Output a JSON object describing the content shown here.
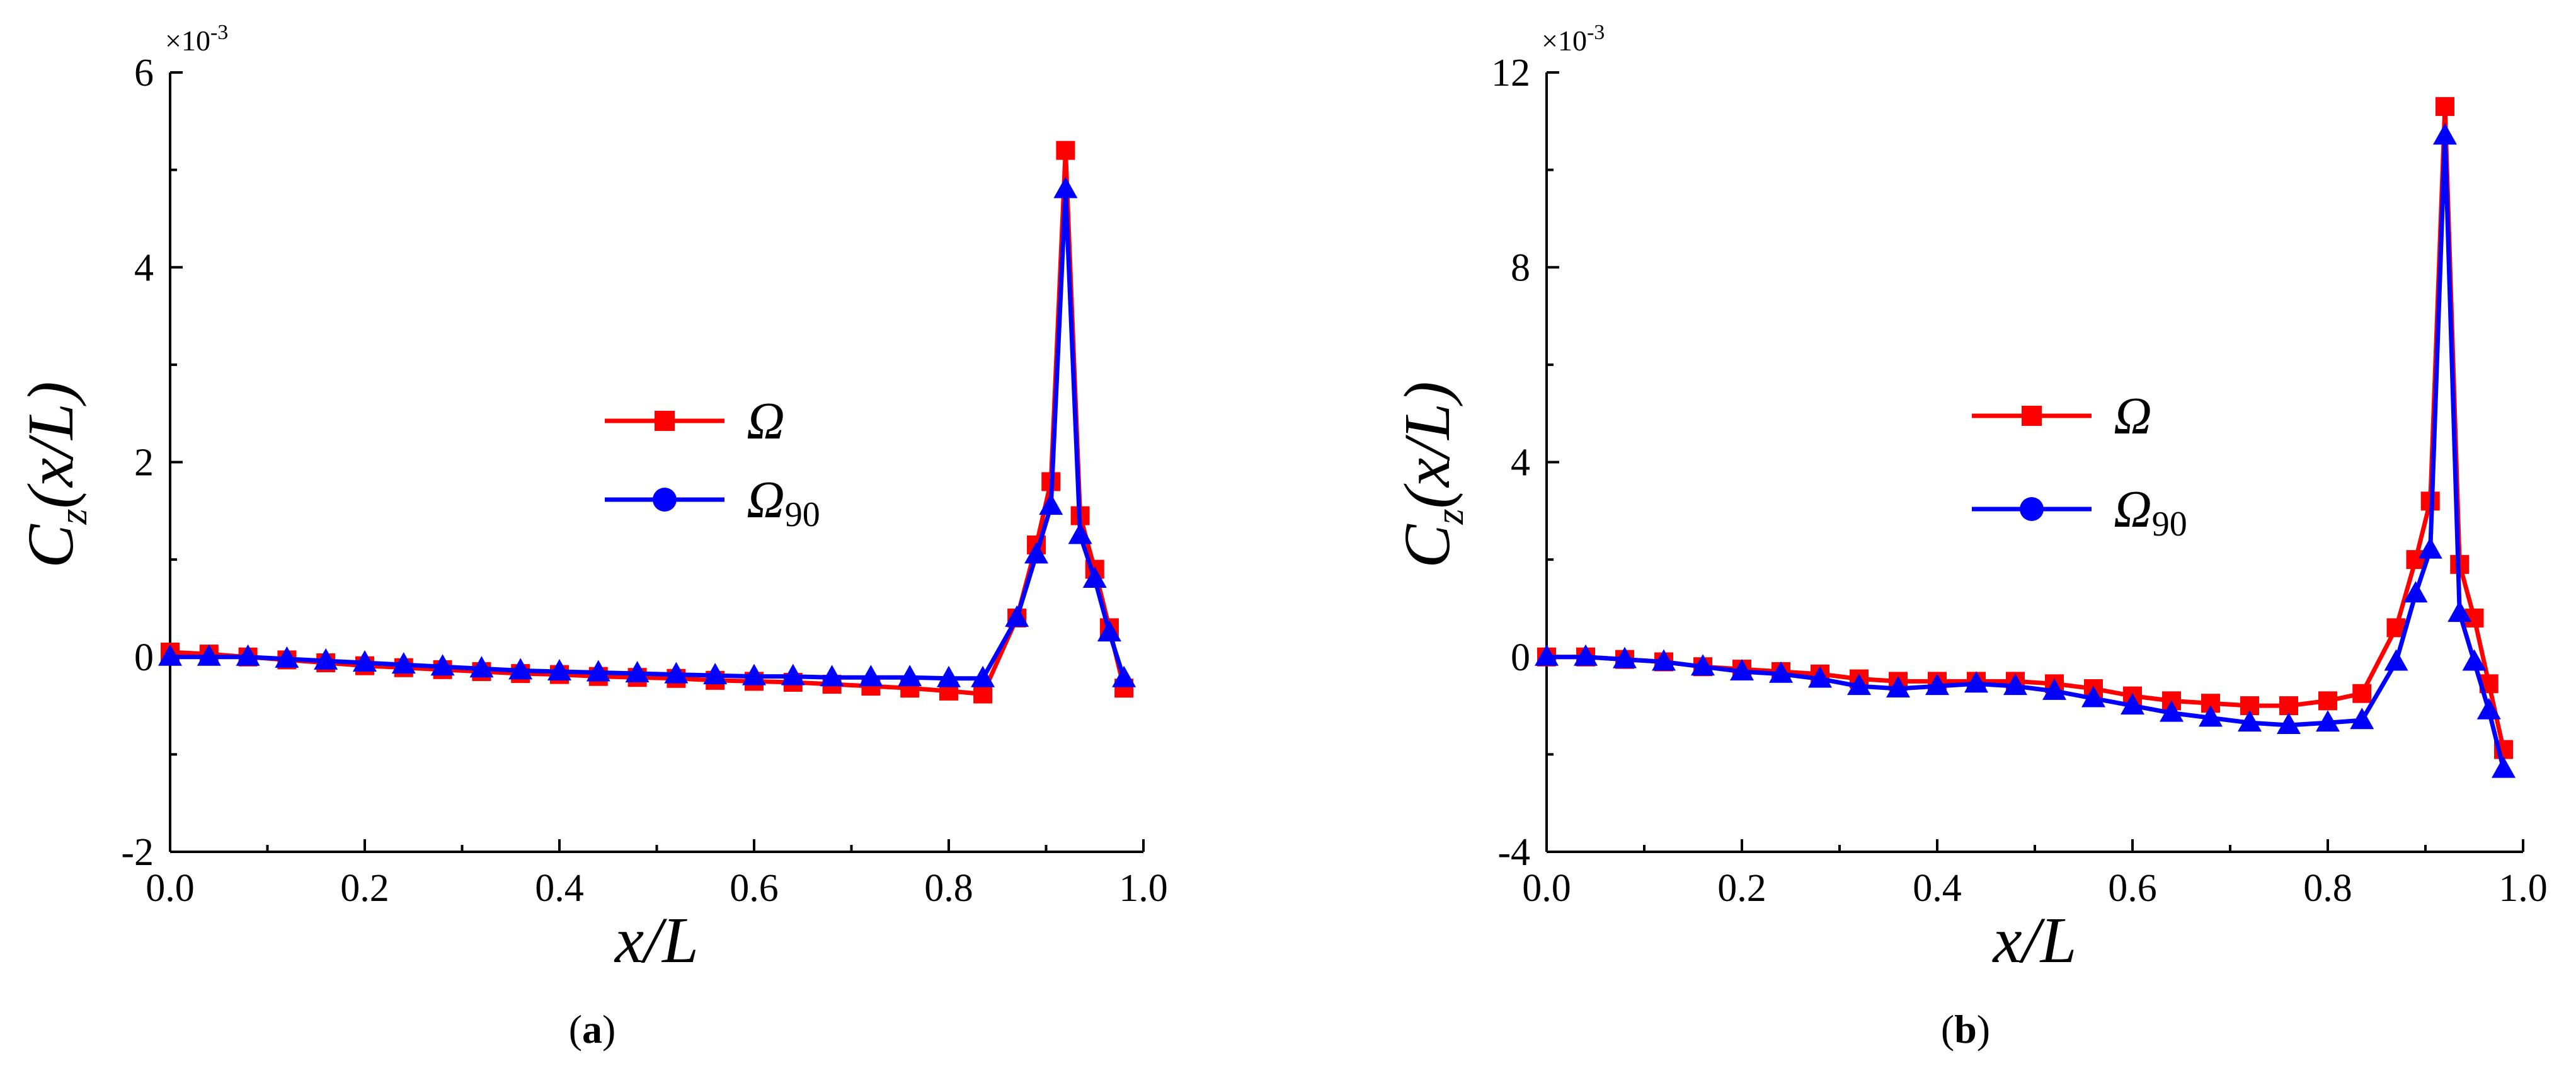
{
  "chart_data": [
    {
      "type": "line",
      "panel_label": "a",
      "xlabel": "x/L",
      "ylabel_main": "C",
      "ylabel_sub": "z",
      "ylabel_arg": "(x/L)",
      "multiplier_base": "×10",
      "multiplier_exp": "-3",
      "xlim": [
        0,
        1.0
      ],
      "ylim": [
        -2,
        6
      ],
      "xticks": [
        0.0,
        0.2,
        0.4,
        0.6,
        0.8,
        1.0
      ],
      "xtick_labels": [
        "0.0",
        "0.2",
        "0.4",
        "0.6",
        "0.8",
        "1.0"
      ],
      "yticks": [
        -2,
        0,
        2,
        4,
        6
      ],
      "ytick_labels": [
        "-2",
        "0",
        "2",
        "4",
        "6"
      ],
      "legend_position": "center-right",
      "series": [
        {
          "name": "Ω",
          "name_sub": "",
          "color": "#ff0000",
          "marker": "square",
          "x": [
            0.0,
            0.04,
            0.08,
            0.12,
            0.16,
            0.2,
            0.24,
            0.28,
            0.32,
            0.36,
            0.4,
            0.44,
            0.48,
            0.52,
            0.56,
            0.6,
            0.64,
            0.68,
            0.72,
            0.76,
            0.8,
            0.835,
            0.87,
            0.89,
            0.905,
            0.92,
            0.935,
            0.95,
            0.965,
            0.98
          ],
          "values": [
            0.05,
            0.03,
            0.0,
            -0.03,
            -0.06,
            -0.09,
            -0.11,
            -0.13,
            -0.15,
            -0.17,
            -0.18,
            -0.2,
            -0.21,
            -0.22,
            -0.24,
            -0.25,
            -0.26,
            -0.28,
            -0.3,
            -0.32,
            -0.35,
            -0.38,
            0.4,
            1.15,
            1.8,
            5.2,
            1.45,
            0.9,
            0.3,
            -0.32
          ]
        },
        {
          "name": "Ω",
          "name_sub": "90",
          "color": "#0000ff",
          "marker": "triangle",
          "x": [
            0.0,
            0.04,
            0.08,
            0.12,
            0.16,
            0.2,
            0.24,
            0.28,
            0.32,
            0.36,
            0.4,
            0.44,
            0.48,
            0.52,
            0.56,
            0.6,
            0.64,
            0.68,
            0.72,
            0.76,
            0.8,
            0.835,
            0.87,
            0.89,
            0.905,
            0.92,
            0.935,
            0.95,
            0.965,
            0.98
          ],
          "values": [
            0.0,
            0.0,
            0.0,
            -0.02,
            -0.04,
            -0.06,
            -0.08,
            -0.1,
            -0.12,
            -0.14,
            -0.15,
            -0.16,
            -0.17,
            -0.18,
            -0.19,
            -0.2,
            -0.2,
            -0.21,
            -0.21,
            -0.21,
            -0.22,
            -0.22,
            0.4,
            1.05,
            1.55,
            4.8,
            1.25,
            0.8,
            0.25,
            -0.22
          ]
        }
      ]
    },
    {
      "type": "line",
      "panel_label": "b",
      "xlabel": "x/L",
      "ylabel_main": "C",
      "ylabel_sub": "z",
      "ylabel_arg": "(x/L)",
      "multiplier_base": "×10",
      "multiplier_exp": "-3",
      "xlim": [
        0,
        1.0
      ],
      "ylim": [
        -4,
        12
      ],
      "xticks": [
        0.0,
        0.2,
        0.4,
        0.6,
        0.8,
        1.0
      ],
      "xtick_labels": [
        "0.0",
        "0.2",
        "0.4",
        "0.6",
        "0.8",
        "1.0"
      ],
      "yticks": [
        -4,
        0,
        4,
        8,
        12
      ],
      "ytick_labels": [
        "-4",
        "0",
        "4",
        "8",
        "12"
      ],
      "legend_position": "center-right",
      "series": [
        {
          "name": "Ω",
          "name_sub": "",
          "color": "#ff0000",
          "marker": "square",
          "x": [
            0.0,
            0.04,
            0.08,
            0.12,
            0.16,
            0.2,
            0.24,
            0.28,
            0.32,
            0.36,
            0.4,
            0.44,
            0.48,
            0.52,
            0.56,
            0.6,
            0.64,
            0.68,
            0.72,
            0.76,
            0.8,
            0.835,
            0.87,
            0.89,
            0.905,
            0.92,
            0.935,
            0.95,
            0.965,
            0.98
          ],
          "values": [
            0.0,
            0.0,
            -0.05,
            -0.1,
            -0.2,
            -0.25,
            -0.3,
            -0.35,
            -0.45,
            -0.5,
            -0.5,
            -0.5,
            -0.5,
            -0.55,
            -0.65,
            -0.8,
            -0.9,
            -0.95,
            -1.0,
            -1.0,
            -0.9,
            -0.75,
            0.6,
            2.0,
            3.2,
            11.3,
            1.9,
            0.8,
            -0.55,
            -1.9
          ]
        },
        {
          "name": "Ω",
          "name_sub": "90",
          "color": "#0000ff",
          "marker": "triangle",
          "x": [
            0.0,
            0.04,
            0.08,
            0.12,
            0.16,
            0.2,
            0.24,
            0.28,
            0.32,
            0.36,
            0.4,
            0.44,
            0.48,
            0.52,
            0.56,
            0.6,
            0.64,
            0.68,
            0.72,
            0.76,
            0.8,
            0.835,
            0.87,
            0.89,
            0.905,
            0.92,
            0.935,
            0.95,
            0.965,
            0.98
          ],
          "values": [
            0.0,
            0.0,
            -0.05,
            -0.1,
            -0.2,
            -0.3,
            -0.35,
            -0.45,
            -0.6,
            -0.65,
            -0.6,
            -0.55,
            -0.6,
            -0.7,
            -0.85,
            -1.0,
            -1.15,
            -1.25,
            -1.35,
            -1.4,
            -1.35,
            -1.3,
            -0.1,
            1.3,
            2.2,
            10.7,
            0.9,
            -0.1,
            -1.1,
            -2.3
          ]
        }
      ]
    }
  ]
}
